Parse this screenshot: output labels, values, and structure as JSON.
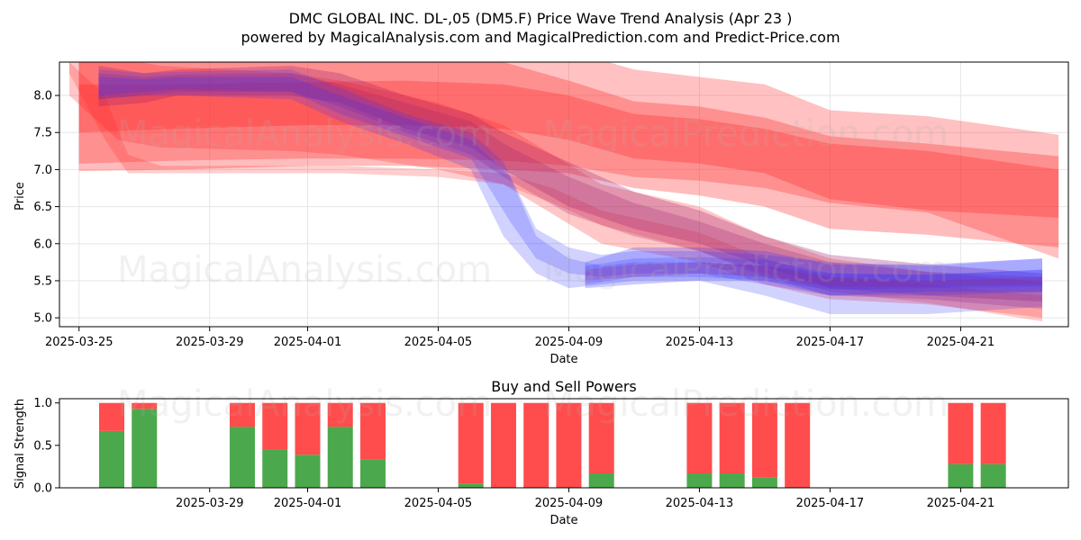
{
  "title": "DMC GLOBAL INC.  DL-,05 (DM5.F) Price Wave Trend Analysis (Apr 23 )",
  "subtitle": "powered by MagicalAnalysis.com and MagicalPrediction.com and Predict-Price.com",
  "watermarks": [
    "MagicalAnalysis.com",
    "MagicalPrediction.com"
  ],
  "colors": {
    "red_band": "#ff2020",
    "blue_band": "#3030ff",
    "buy": "#4ca84c",
    "sell": "#ff4c4c"
  },
  "chart_data": [
    {
      "type": "area",
      "title": "",
      "xlabel": "Date",
      "ylabel": "Price",
      "ylim": [
        4.88,
        8.45
      ],
      "xlim_days": [
        -0.6,
        30.3
      ],
      "x_ticks": [
        {
          "day": 0,
          "label": "2025-03-25"
        },
        {
          "day": 4,
          "label": "2025-03-29"
        },
        {
          "day": 7,
          "label": "2025-04-01"
        },
        {
          "day": 11,
          "label": "2025-04-05"
        },
        {
          "day": 15,
          "label": "2025-04-09"
        },
        {
          "day": 19,
          "label": "2025-04-13"
        },
        {
          "day": 23,
          "label": "2025-04-17"
        },
        {
          "day": 27,
          "label": "2025-04-21"
        }
      ],
      "y_ticks": [
        {
          "v": 5.0,
          "label": "5.0"
        },
        {
          "v": 5.5,
          "label": "5.5"
        },
        {
          "v": 6.0,
          "label": "6.0"
        },
        {
          "v": 6.5,
          "label": "6.5"
        },
        {
          "v": 7.0,
          "label": "7.0"
        },
        {
          "v": 7.5,
          "label": "7.5"
        },
        {
          "v": 8.0,
          "label": "8.0"
        }
      ],
      "grid": true,
      "series": [
        {
          "name": "red-wide-1",
          "color": "red",
          "opacity": 0.28,
          "x": [
            0,
            3,
            7,
            10,
            13,
            15,
            17,
            19,
            21,
            23,
            26,
            30
          ],
          "upper": [
            8.65,
            8.65,
            8.7,
            8.7,
            8.7,
            8.6,
            8.35,
            8.25,
            8.15,
            7.8,
            7.72,
            7.47
          ],
          "lower": [
            7.08,
            7.12,
            7.15,
            7.15,
            7.12,
            7.05,
            6.9,
            6.85,
            6.75,
            6.55,
            6.42,
            5.8
          ]
        },
        {
          "name": "red-wide-2",
          "color": "red",
          "opacity": 0.3,
          "x": [
            0,
            3,
            7,
            10,
            13,
            15,
            17,
            19,
            21,
            23,
            26,
            30
          ],
          "upper": [
            8.5,
            8.55,
            8.55,
            8.5,
            8.45,
            8.2,
            7.92,
            7.85,
            7.7,
            7.45,
            7.35,
            7.18
          ],
          "lower": [
            6.98,
            7.0,
            7.05,
            7.05,
            7.0,
            6.95,
            6.75,
            6.65,
            6.5,
            6.2,
            6.12,
            5.95
          ]
        },
        {
          "name": "red-mid-1",
          "color": "red",
          "opacity": 0.3,
          "x": [
            0,
            3,
            7,
            10,
            13,
            15,
            17,
            19,
            21,
            23,
            26,
            30
          ],
          "upper": [
            8.15,
            8.15,
            8.18,
            8.2,
            8.15,
            8.0,
            7.75,
            7.68,
            7.55,
            7.35,
            7.25,
            7.0
          ],
          "lower": [
            7.5,
            7.55,
            7.6,
            7.6,
            7.55,
            7.4,
            7.15,
            7.08,
            6.95,
            6.6,
            6.45,
            6.35
          ]
        },
        {
          "name": "red-steep-1",
          "color": "red",
          "opacity": 0.25,
          "x": [
            -0.3,
            1.2,
            2.5,
            6.5,
            8,
            11,
            13,
            14.5,
            16,
            19,
            21,
            23,
            26,
            29.5
          ],
          "upper": [
            8.5,
            8.5,
            8.4,
            8.3,
            8.2,
            7.9,
            7.6,
            7.2,
            6.8,
            6.5,
            6.1,
            5.8,
            5.62,
            5.48
          ],
          "lower": [
            8.0,
            7.4,
            7.3,
            7.25,
            7.2,
            7.0,
            6.8,
            6.4,
            6.0,
            5.75,
            5.45,
            5.25,
            5.18,
            5.0
          ]
        },
        {
          "name": "red-steep-2",
          "color": "red",
          "opacity": 0.22,
          "x": [
            -0.3,
            0.8,
            1.5,
            2.5,
            6.5,
            8,
            11,
            13,
            14.5,
            16,
            19,
            21,
            23,
            26,
            29.5
          ],
          "upper": [
            8.45,
            8.0,
            7.2,
            7.05,
            7.05,
            7.05,
            7.0,
            6.95,
            6.75,
            6.45,
            6.15,
            5.8,
            5.55,
            5.45,
            5.3
          ],
          "lower": [
            8.3,
            7.4,
            6.95,
            6.95,
            6.95,
            6.95,
            6.9,
            6.8,
            6.55,
            6.25,
            5.9,
            5.6,
            5.35,
            5.2,
            4.95
          ]
        },
        {
          "name": "purple-1",
          "color": "purple",
          "opacity": 0.3,
          "x": [
            0.6,
            2,
            3,
            6.5,
            8,
            10,
            12,
            13,
            15,
            17,
            19,
            21,
            23,
            26,
            29.5
          ],
          "upper": [
            8.4,
            8.3,
            8.35,
            8.4,
            8.3,
            8.0,
            7.75,
            7.5,
            7.1,
            6.7,
            6.45,
            6.1,
            5.85,
            5.72,
            5.6
          ],
          "lower": [
            7.85,
            7.9,
            8.0,
            8.0,
            7.9,
            7.55,
            7.3,
            7.0,
            6.5,
            6.2,
            6.0,
            5.7,
            5.4,
            5.3,
            5.22
          ]
        },
        {
          "name": "purple-2",
          "color": "purple",
          "opacity": 0.25,
          "x": [
            0.6,
            2,
            3,
            6.5,
            8,
            10,
            12,
            13,
            15,
            17,
            19,
            21,
            23,
            26,
            29.5
          ],
          "upper": [
            8.3,
            8.25,
            8.28,
            8.3,
            8.15,
            7.9,
            7.65,
            7.35,
            6.9,
            6.55,
            6.3,
            6.0,
            5.75,
            5.62,
            5.55
          ],
          "lower": [
            7.95,
            8.0,
            8.05,
            8.05,
            7.85,
            7.5,
            7.2,
            6.9,
            6.4,
            6.1,
            5.9,
            5.55,
            5.3,
            5.25,
            5.12
          ]
        },
        {
          "name": "blue-1",
          "color": "blue",
          "opacity": 0.22,
          "x": [
            0.6,
            2,
            3,
            6.5,
            8,
            10,
            12,
            13,
            14,
            15,
            16,
            17,
            19,
            21,
            23,
            26,
            29.5
          ],
          "upper": [
            8.35,
            8.3,
            8.32,
            8.35,
            8.1,
            7.75,
            7.5,
            7.1,
            6.2,
            5.95,
            5.85,
            5.9,
            5.9,
            5.85,
            5.75,
            5.7,
            5.8
          ],
          "lower": [
            7.95,
            8.0,
            8.0,
            7.95,
            7.65,
            7.35,
            7.0,
            6.1,
            5.6,
            5.4,
            5.45,
            5.5,
            5.5,
            5.3,
            5.05,
            5.05,
            5.15
          ]
        },
        {
          "name": "blue-2",
          "color": "blue",
          "opacity": 0.22,
          "x": [
            0.6,
            2,
            3,
            6.5,
            8,
            10,
            12,
            13.2,
            14,
            15,
            16,
            17,
            19,
            21,
            23,
            26,
            29.5
          ],
          "upper": [
            8.25,
            8.22,
            8.25,
            8.25,
            8.0,
            7.7,
            7.4,
            6.9,
            6.1,
            5.8,
            5.7,
            5.75,
            5.75,
            5.7,
            5.6,
            5.58,
            5.65
          ],
          "lower": [
            8.0,
            8.05,
            8.08,
            8.05,
            7.75,
            7.45,
            7.15,
            6.3,
            5.8,
            5.6,
            5.55,
            5.6,
            5.6,
            5.45,
            5.3,
            5.3,
            5.35
          ]
        },
        {
          "name": "blue-3",
          "color": "blue",
          "opacity": 0.25,
          "x": [
            15.5,
            17,
            19,
            21,
            23,
            26,
            29.5
          ],
          "upper": [
            5.75,
            5.95,
            5.95,
            5.9,
            5.72,
            5.72,
            5.8
          ],
          "lower": [
            5.4,
            5.45,
            5.5,
            5.5,
            5.3,
            5.35,
            5.35
          ]
        },
        {
          "name": "blue-4",
          "color": "blue",
          "opacity": 0.22,
          "x": [
            15.5,
            17,
            19,
            21,
            23,
            26,
            29.5
          ],
          "upper": [
            5.7,
            5.8,
            5.82,
            5.78,
            5.6,
            5.58,
            5.65
          ],
          "lower": [
            5.45,
            5.55,
            5.55,
            5.5,
            5.38,
            5.4,
            5.42
          ]
        },
        {
          "name": "purple-3",
          "color": "purple",
          "opacity": 0.25,
          "x": [
            15.5,
            17,
            19,
            21,
            23,
            26,
            29.5
          ],
          "upper": [
            5.65,
            5.72,
            5.75,
            5.7,
            5.55,
            5.5,
            5.55
          ],
          "lower": [
            5.5,
            5.55,
            5.6,
            5.55,
            5.42,
            5.42,
            5.45
          ]
        }
      ]
    },
    {
      "type": "bar",
      "title": "Buy and Sell Powers",
      "xlabel": "Date",
      "ylabel": "Signal Strength",
      "ylim": [
        0,
        1.05
      ],
      "x_ticks": [
        {
          "day": 4,
          "label": "2025-03-29"
        },
        {
          "day": 7,
          "label": "2025-04-01"
        },
        {
          "day": 11,
          "label": "2025-04-05"
        },
        {
          "day": 15,
          "label": "2025-04-09"
        },
        {
          "day": 19,
          "label": "2025-04-13"
        },
        {
          "day": 23,
          "label": "2025-04-17"
        },
        {
          "day": 27,
          "label": "2025-04-21"
        }
      ],
      "y_ticks": [
        {
          "v": 0.0,
          "label": "0.0"
        },
        {
          "v": 0.5,
          "label": "0.5"
        },
        {
          "v": 1.0,
          "label": "1.0"
        }
      ],
      "series": [
        {
          "name": "Buy",
          "day": [
            1,
            2,
            5,
            6,
            7,
            8,
            9,
            12,
            13,
            14,
            15,
            16,
            19,
            20,
            21,
            22,
            27,
            28
          ],
          "values": [
            0.67,
            0.93,
            0.72,
            0.45,
            0.39,
            0.72,
            0.33,
            0.05,
            0.0,
            0.0,
            0.0,
            0.17,
            0.17,
            0.17,
            0.12,
            0.0,
            0.28,
            0.28
          ]
        },
        {
          "name": "Sell",
          "day": [
            1,
            2,
            5,
            6,
            7,
            8,
            9,
            12,
            13,
            14,
            15,
            16,
            19,
            20,
            21,
            22,
            27,
            28
          ],
          "values": [
            0.33,
            0.07,
            0.28,
            0.55,
            0.61,
            0.28,
            0.67,
            0.95,
            1.0,
            1.0,
            1.0,
            0.83,
            0.83,
            0.83,
            0.88,
            1.0,
            0.72,
            0.72
          ]
        }
      ]
    }
  ]
}
